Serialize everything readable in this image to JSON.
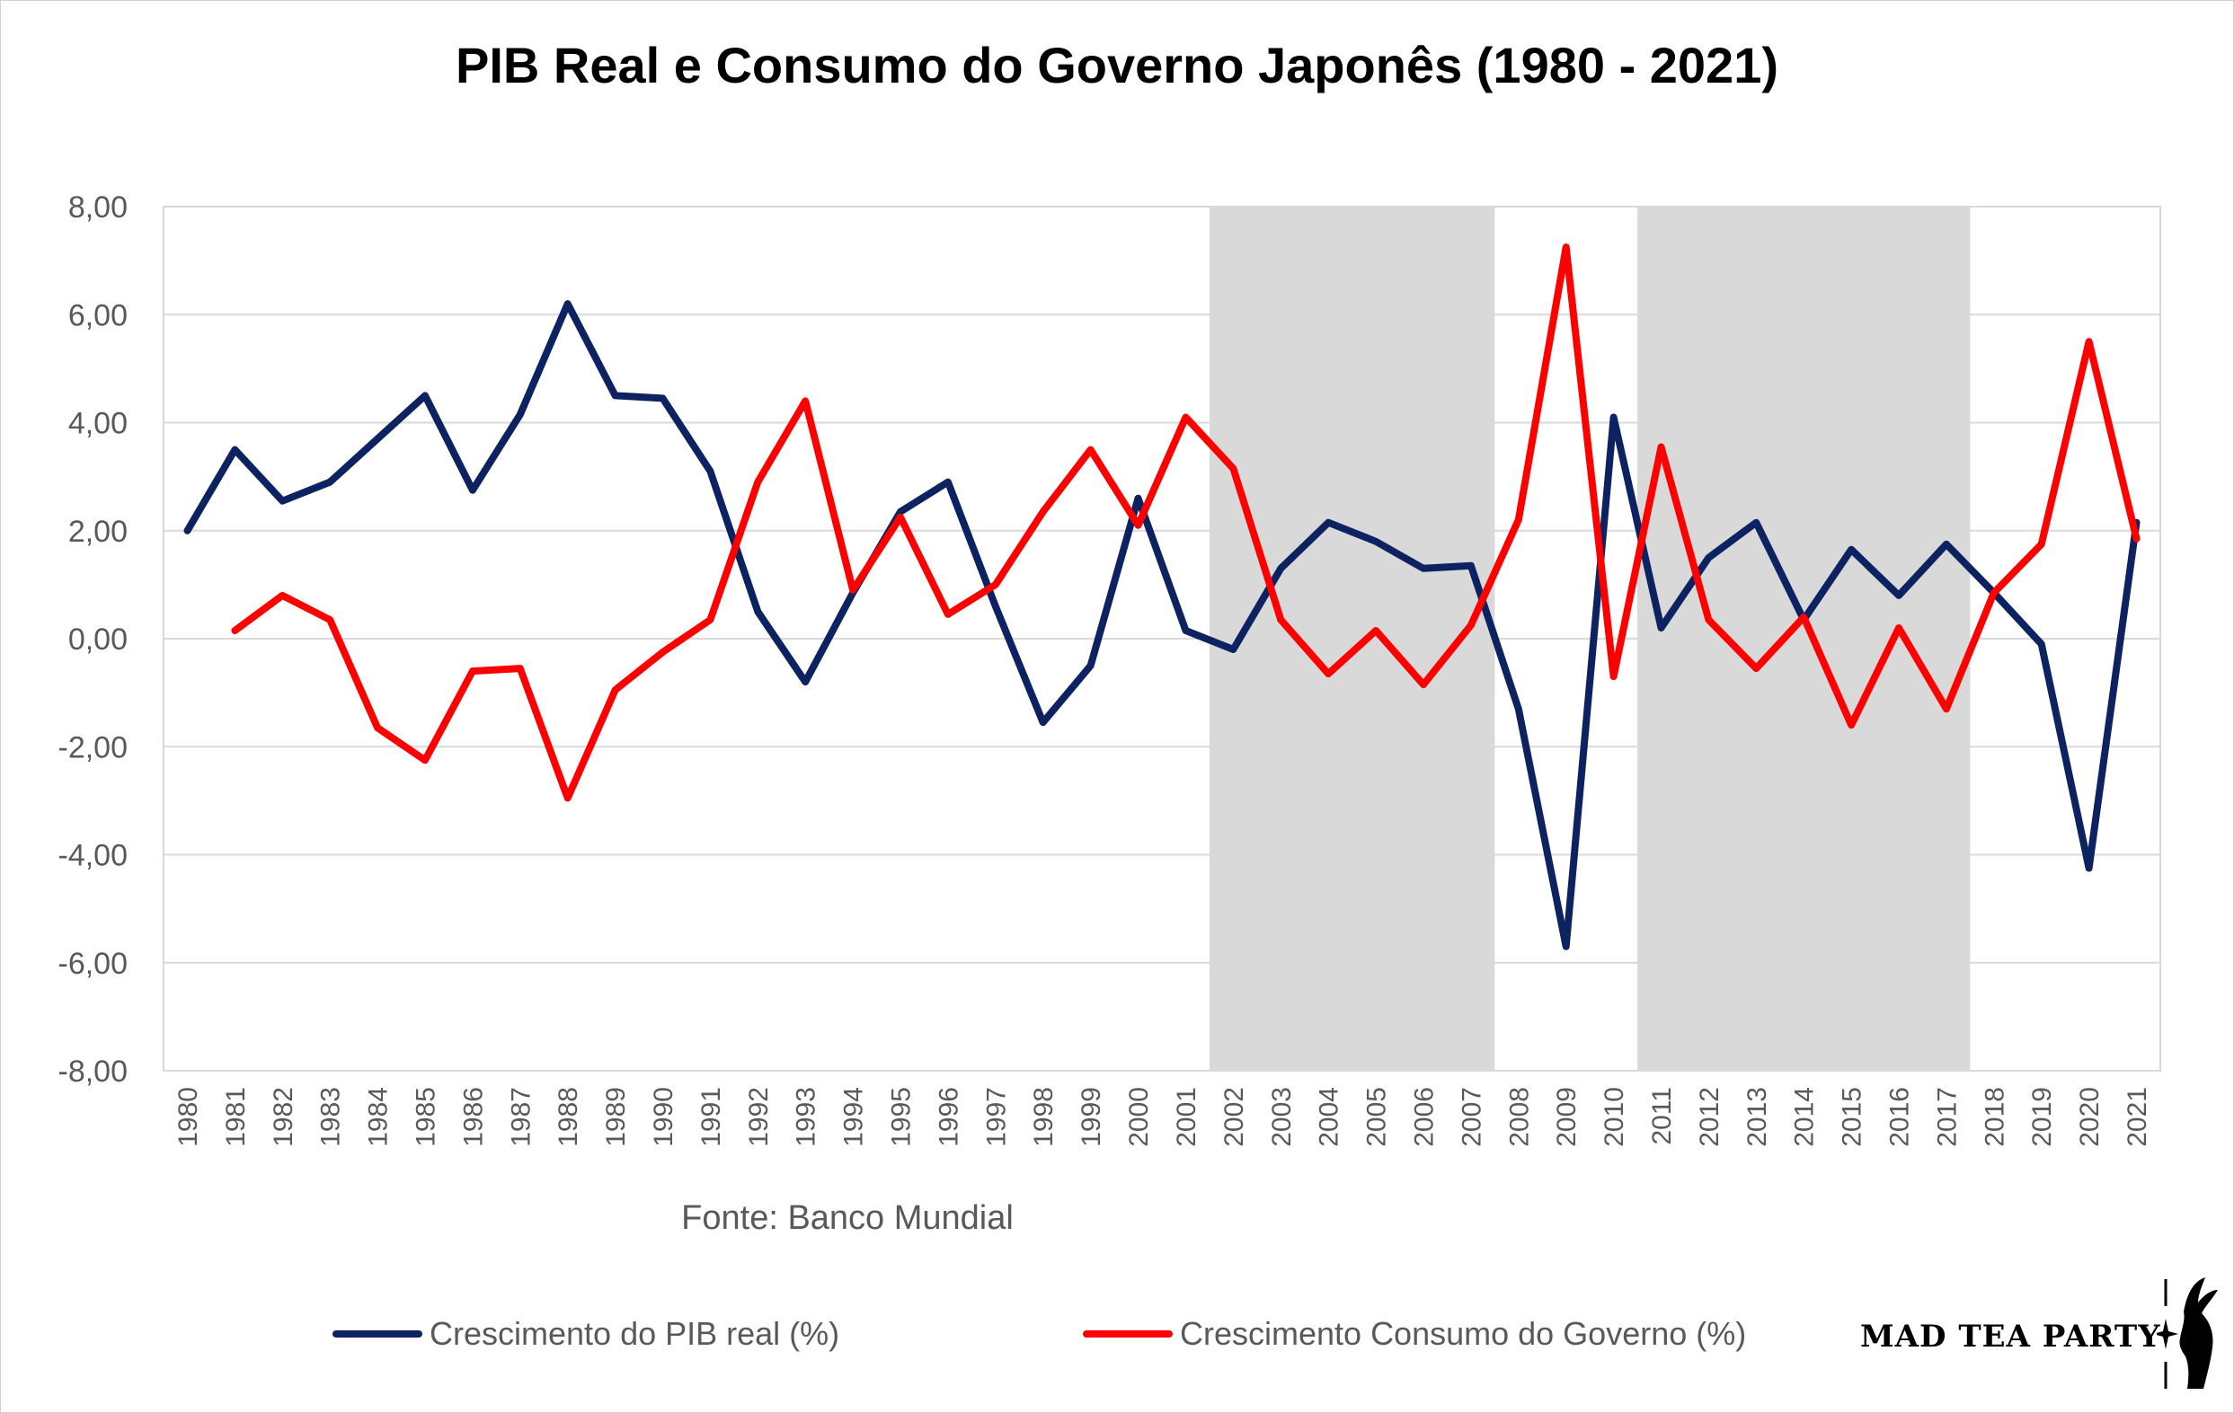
{
  "chart_data": {
    "type": "line",
    "title": "PIB Real e Consumo do Governo Japonês (1980 - 2021)",
    "source_note": "Fonte: Banco Mundial",
    "x": [
      1980,
      1981,
      1982,
      1983,
      1984,
      1985,
      1986,
      1987,
      1988,
      1989,
      1990,
      1991,
      1992,
      1993,
      1994,
      1995,
      1996,
      1997,
      1998,
      1999,
      2000,
      2001,
      2002,
      2003,
      2004,
      2005,
      2006,
      2007,
      2008,
      2009,
      2010,
      2011,
      2012,
      2013,
      2014,
      2015,
      2016,
      2017,
      2018,
      2019,
      2020,
      2021
    ],
    "x_tick_labels": [
      "1980",
      "1981",
      "1982",
      "1983",
      "1984",
      "1985",
      "1986",
      "1987",
      "1988",
      "1989",
      "1990",
      "1991",
      "1992",
      "1993",
      "1994",
      "1995",
      "1996",
      "1997",
      "1998",
      "1999",
      "2000",
      "2001",
      "2002",
      "2003",
      "2004",
      "2005",
      "2006",
      "2007",
      "2008",
      "2009",
      "2010",
      "2011",
      "2012",
      "2013",
      "2014",
      "2015",
      "2016",
      "2017",
      "2018",
      "2019",
      "2020",
      "2021"
    ],
    "ylim": [
      -8,
      8
    ],
    "y_ticks": [
      -8,
      -6,
      -4,
      -2,
      0,
      2,
      4,
      6,
      8
    ],
    "y_tick_labels": [
      "-8,00",
      "-6,00",
      "-4,00",
      "-2,00",
      "0,00",
      "2,00",
      "4,00",
      "6,00",
      "8,00"
    ],
    "grid": "horizontal",
    "legend_position": "bottom",
    "shaded_periods": [
      [
        2001.5,
        2007.5
      ],
      [
        2010.5,
        2017.5
      ]
    ],
    "series": [
      {
        "name": "Crescimento do PIB real (%)",
        "color": "#0d2260",
        "values": [
          2.0,
          3.5,
          2.55,
          2.9,
          3.7,
          4.5,
          2.75,
          4.15,
          6.2,
          4.5,
          4.45,
          3.1,
          0.5,
          -0.8,
          0.85,
          2.35,
          2.9,
          0.6,
          -1.55,
          -0.5,
          2.6,
          0.15,
          -0.2,
          1.3,
          2.15,
          1.8,
          1.3,
          1.35,
          -1.3,
          -5.7,
          4.1,
          0.2,
          1.5,
          2.15,
          0.35,
          1.65,
          0.8,
          1.75,
          0.85,
          -0.1,
          -4.25,
          2.15
        ]
      },
      {
        "name": "Crescimento Consumo do Governo (%)",
        "color": "#ff0000",
        "values": [
          null,
          0.15,
          0.8,
          0.35,
          -1.65,
          -2.25,
          -0.6,
          -0.55,
          -2.95,
          -0.95,
          -0.25,
          0.35,
          2.9,
          4.4,
          0.9,
          2.25,
          0.45,
          1.0,
          2.35,
          3.5,
          2.1,
          4.1,
          3.15,
          0.35,
          -0.65,
          0.15,
          -0.85,
          0.25,
          2.2,
          7.25,
          -0.7,
          3.55,
          0.35,
          -0.55,
          0.4,
          -1.6,
          0.2,
          -1.3,
          0.85,
          1.75,
          5.5,
          1.85
        ]
      }
    ],
    "background_color": "#ffffff",
    "shade_color": "#d9d9d9",
    "grid_color": "#d9d9d9"
  },
  "branding": {
    "logo_text": "MAD TEA PARTY",
    "logo_icon": "rabbit-silhouette-icon"
  }
}
